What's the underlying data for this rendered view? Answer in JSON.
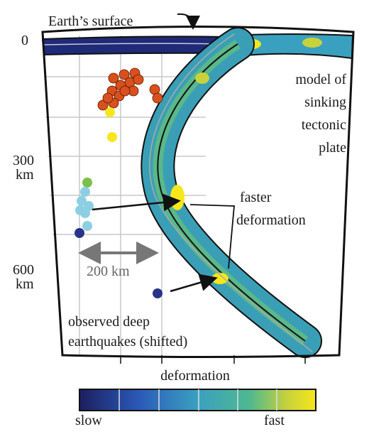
{
  "header": {
    "title": "Earth’s surface"
  },
  "depth_labels": [
    "0",
    "300",
    "km",
    "600",
    "km"
  ],
  "model_label": [
    "model of",
    "sinking",
    "tectonic",
    "plate"
  ],
  "deformation_label": [
    "faster",
    "deformation"
  ],
  "scale_label": "200 km",
  "earthquake_label": [
    "observed deep",
    "earthquakes (shifted)"
  ],
  "colorbar": {
    "title": "deformation",
    "low": "slow",
    "high": "fast"
  }
}
